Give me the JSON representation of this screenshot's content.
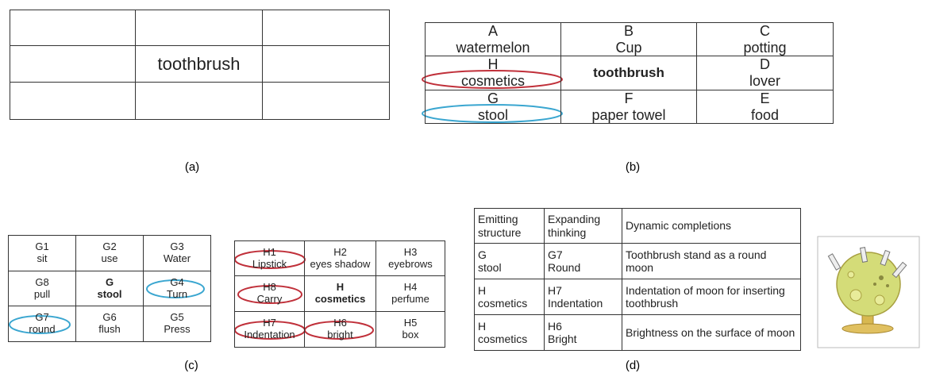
{
  "figure_a": {
    "label": "toothbrush",
    "caption": "(a)"
  },
  "figure_b": {
    "cells": [
      [
        [
          "A",
          "watermelon"
        ],
        [
          "B",
          "Cup"
        ],
        [
          "C",
          "potting"
        ]
      ],
      [
        [
          "H",
          "cosmetics"
        ],
        [
          "toothbrush"
        ],
        [
          "D",
          "lover"
        ]
      ],
      [
        [
          "G",
          "stool"
        ],
        [
          "F",
          "paper towel"
        ],
        [
          "E",
          "food"
        ]
      ]
    ],
    "caption": "(b)"
  },
  "figure_c": {
    "left": [
      [
        [
          "G1",
          "sit"
        ],
        [
          "G2",
          "use"
        ],
        [
          "G3",
          "Water"
        ]
      ],
      [
        [
          "G8",
          "pull"
        ],
        [
          "G",
          "stool"
        ],
        [
          "G4",
          "Turn"
        ]
      ],
      [
        [
          "G7",
          "round"
        ],
        [
          "G6",
          "flush"
        ],
        [
          "G5",
          "Press"
        ]
      ]
    ],
    "right": [
      [
        [
          "H1",
          "Lipstick"
        ],
        [
          "H2",
          "eyes shadow"
        ],
        [
          "H3",
          "eyebrows"
        ]
      ],
      [
        [
          "H8",
          "Carry"
        ],
        [
          "H",
          "cosmetics"
        ],
        [
          "H4",
          "perfume"
        ]
      ],
      [
        [
          "H7",
          "Indentation"
        ],
        [
          "H6",
          "bright"
        ],
        [
          "H5",
          "box"
        ]
      ]
    ],
    "caption": "(c)"
  },
  "figure_d": {
    "rows": [
      [
        [
          "Emitting structure"
        ],
        [
          "Expanding thinking"
        ],
        [
          "Dynamic completions"
        ]
      ],
      [
        [
          "G",
          "stool"
        ],
        [
          "G7",
          "Round"
        ],
        [
          "Toothbrush stand as a round moon"
        ]
      ],
      [
        [
          "H",
          "cosmetics"
        ],
        [
          "H7",
          "Indentation"
        ],
        [
          "Indentation of moon for inserting toothbrush"
        ]
      ],
      [
        [
          "H",
          "cosmetics"
        ],
        [
          "H6",
          "Bright"
        ],
        [
          "Brightness on the surface of moon"
        ]
      ]
    ],
    "caption": "(d)"
  }
}
